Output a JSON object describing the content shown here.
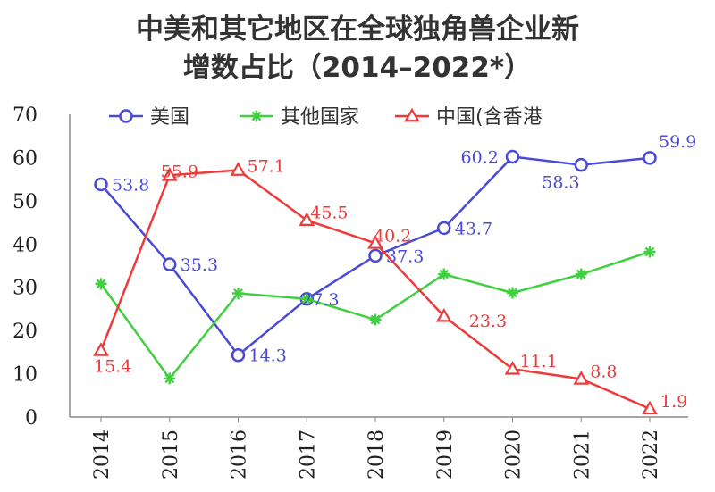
{
  "title_line1": "中美和其它地区在全球独角兽企业新",
  "title_line2": "增数占比（2014–2022*）",
  "chart_data": {
    "type": "line",
    "title": "中美和其它地区在全球独角兽企业新增数占比（2014–2022*）",
    "x": [
      "2014",
      "2015",
      "2016",
      "2017",
      "2018",
      "2019",
      "2020",
      "2021",
      "2022"
    ],
    "ylim": [
      0,
      70
    ],
    "yticks": [
      0,
      10,
      20,
      30,
      40,
      50,
      60,
      70
    ],
    "legend_position": "top",
    "series": [
      {
        "name": "美国",
        "color": "#4a4ad8",
        "marker": "circle",
        "values": [
          53.8,
          35.3,
          14.3,
          27.3,
          37.3,
          43.7,
          60.2,
          58.3,
          59.9
        ],
        "labels": [
          "53.8",
          "35.3",
          "14.3",
          "27.3",
          "37.3",
          "43.7",
          "60.2",
          "58.3",
          "59.9"
        ]
      },
      {
        "name": "其他国家",
        "color": "#3fcf3f",
        "marker": "star",
        "values": [
          30.8,
          8.9,
          28.6,
          27.3,
          22.5,
          33.0,
          28.7,
          33.0,
          38.2
        ],
        "labels": null
      },
      {
        "name": "中国(含香港",
        "color": "#ee3a3a",
        "marker": "triangle",
        "values": [
          15.4,
          55.9,
          57.1,
          45.5,
          40.2,
          23.3,
          11.1,
          8.8,
          1.9
        ],
        "labels": [
          "15.4",
          "55.9",
          "57.1",
          "45.5",
          "40.2",
          "23.3",
          "11.1",
          "8.8",
          "1.9"
        ]
      }
    ]
  }
}
